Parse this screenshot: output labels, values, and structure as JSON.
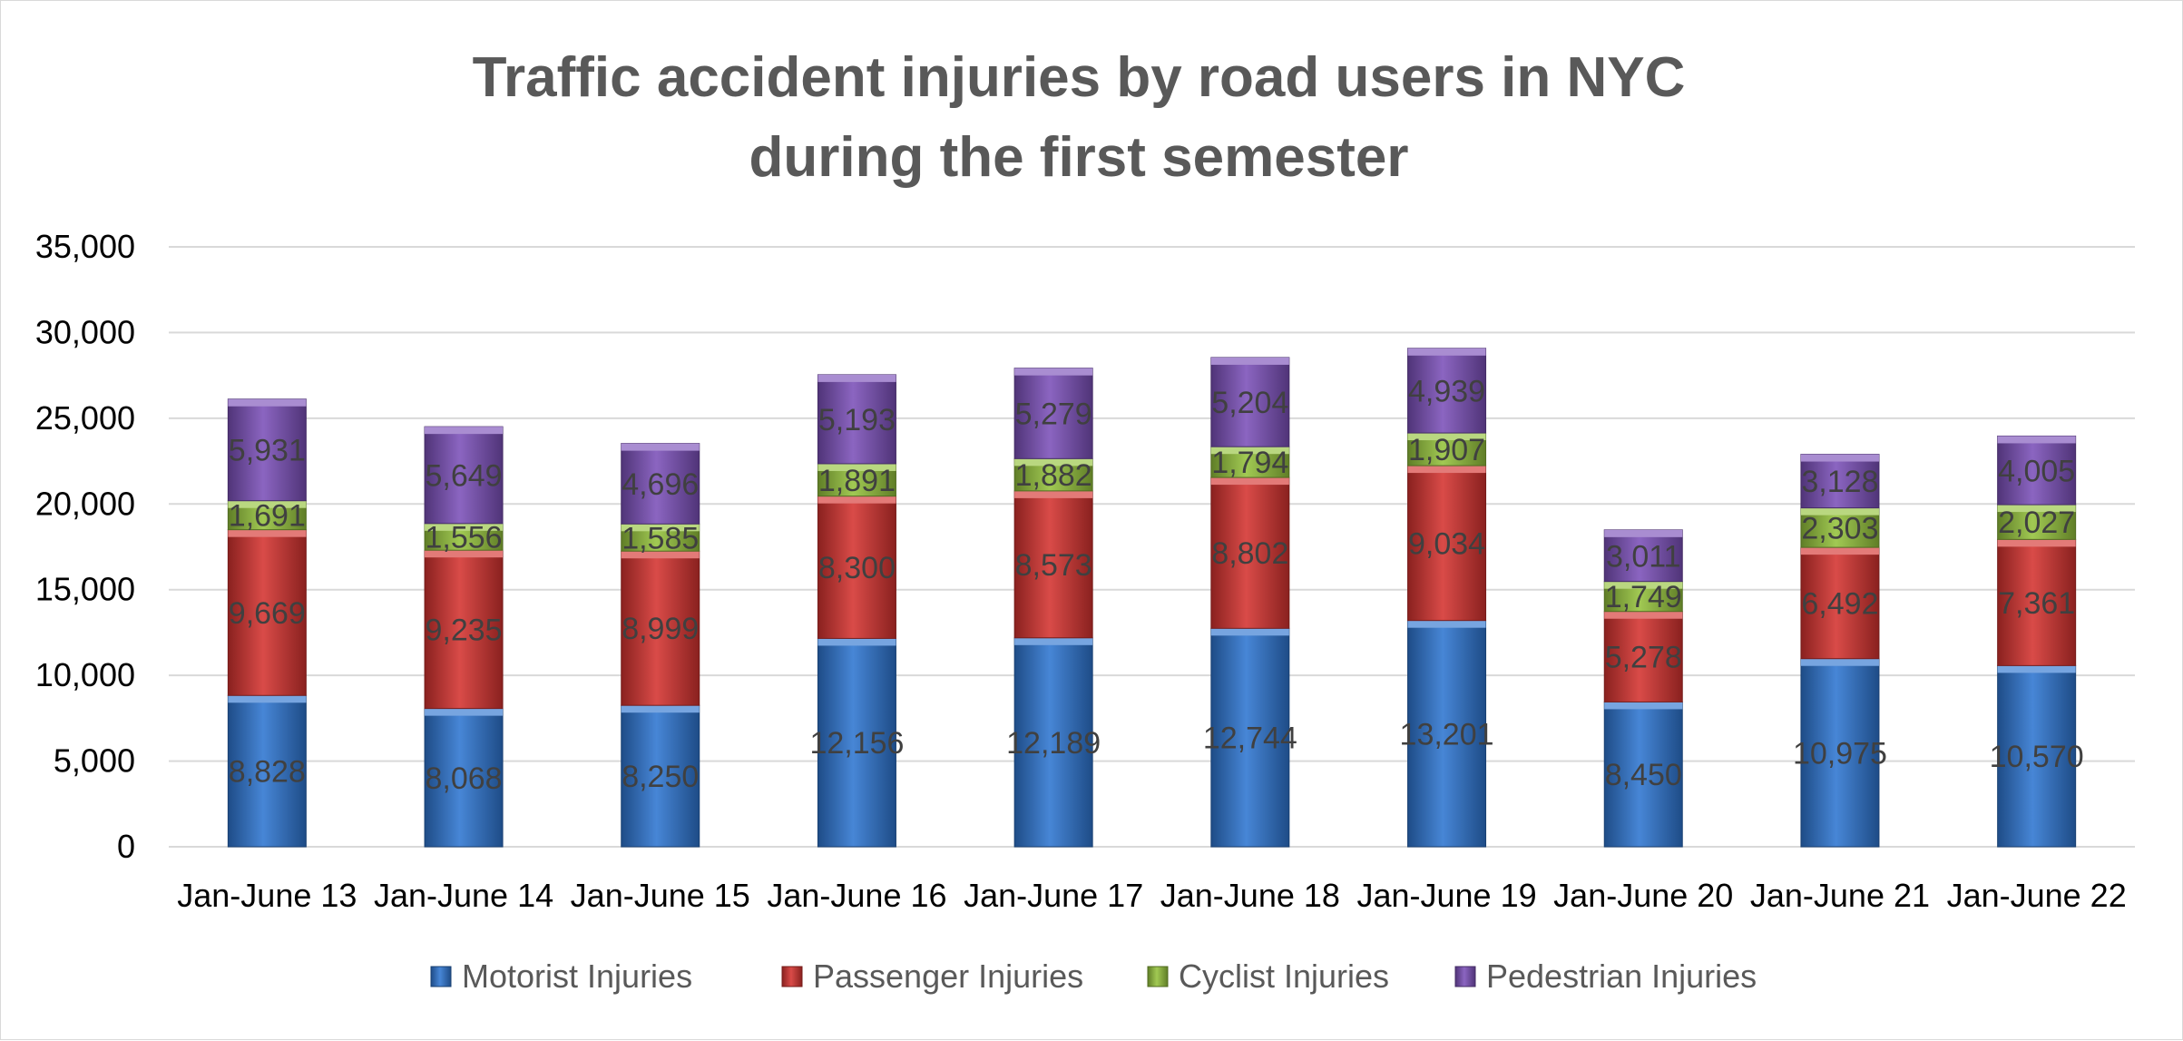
{
  "chart_data": {
    "type": "bar",
    "stacked": true,
    "title_lines": [
      "Traffic accident injuries  by road users in NYC",
      "during the first semester"
    ],
    "xlabel": "",
    "ylabel": "",
    "ylim": [
      0,
      35000
    ],
    "y_ticks": [
      0,
      5000,
      10000,
      15000,
      20000,
      25000,
      30000,
      35000
    ],
    "y_tick_labels": [
      "0",
      "5,000",
      "10,000",
      "15,000",
      "20,000",
      "25,000",
      "30,000",
      "35,000"
    ],
    "grid": true,
    "legend_position": "bottom",
    "categories": [
      "Jan-June 13",
      "Jan-June 14",
      "Jan-June 15",
      "Jan-June 16",
      "Jan-June 17",
      "Jan-June 18",
      "Jan-June 19",
      "Jan-June 20",
      "Jan-June 21",
      "Jan-June 22"
    ],
    "series": [
      {
        "name": "Motorist Injuries",
        "color": "#2e75d0",
        "values": [
          8828,
          8068,
          8250,
          12156,
          12189,
          12744,
          13201,
          8450,
          10975,
          10570
        ],
        "labels": [
          "8,828",
          "8,068",
          "8,250",
          "12,156",
          "12,189",
          "12,744",
          "13,201",
          "8,450",
          "10,975",
          "10,570"
        ]
      },
      {
        "name": "Passenger Injuries",
        "color": "#d4322f",
        "values": [
          9669,
          9235,
          8999,
          8300,
          8573,
          8802,
          9034,
          5278,
          6492,
          7361
        ],
        "labels": [
          "9,669",
          "9,235",
          "8,999",
          "8,300",
          "8,573",
          "8,802",
          "9,034",
          "5,278",
          "6,492",
          "7,361"
        ]
      },
      {
        "name": "Cyclist Injuries",
        "color": "#94c23c",
        "values": [
          1691,
          1556,
          1585,
          1891,
          1882,
          1794,
          1907,
          1749,
          2303,
          2027
        ],
        "labels": [
          "1,691",
          "1,556",
          "1,585",
          "1,891",
          "1,882",
          "1,794",
          "1,907",
          "1,749",
          "2,303",
          "2,027"
        ]
      },
      {
        "name": "Pedestrian Injuries",
        "color": "#7b50b8",
        "values": [
          5931,
          5649,
          4696,
          5193,
          5279,
          5204,
          4939,
          3011,
          3128,
          4005
        ],
        "labels": [
          "5,931",
          "5,649",
          "4,696",
          "5,193",
          "5,279",
          "5,204",
          "4,939",
          "3,011",
          "3,128",
          "4,005"
        ]
      }
    ]
  }
}
